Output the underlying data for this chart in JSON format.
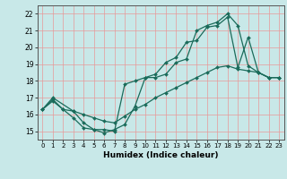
{
  "title": "",
  "xlabel": "Humidex (Indice chaleur)",
  "bg_color": "#c8e8e8",
  "grid_color": "#e89898",
  "line_color": "#1a6b5a",
  "xlim": [
    -0.5,
    23.5
  ],
  "ylim": [
    14.5,
    22.5
  ],
  "xticks": [
    0,
    1,
    2,
    3,
    4,
    5,
    6,
    7,
    8,
    9,
    10,
    11,
    12,
    13,
    14,
    15,
    16,
    17,
    18,
    19,
    20,
    21,
    22,
    23
  ],
  "yticks": [
    15,
    16,
    17,
    18,
    19,
    20,
    21,
    22
  ],
  "line1_x": [
    0,
    1,
    2,
    3,
    4,
    5,
    6,
    7,
    8,
    9,
    10,
    11,
    12,
    13,
    14,
    15,
    16,
    17,
    18,
    19,
    20,
    21,
    22,
    23
  ],
  "line1_y": [
    16.3,
    16.9,
    16.3,
    15.8,
    15.2,
    15.1,
    14.9,
    15.1,
    15.4,
    16.5,
    18.2,
    18.4,
    19.1,
    19.4,
    20.3,
    20.4,
    21.2,
    21.3,
    21.8,
    18.8,
    20.6,
    18.5,
    18.2,
    18.2
  ],
  "line2_x": [
    0,
    1,
    2,
    3,
    4,
    5,
    6,
    7,
    8,
    9,
    10,
    11,
    12,
    13,
    14,
    15,
    16,
    17,
    18,
    19,
    20,
    21,
    22,
    23
  ],
  "line2_y": [
    16.3,
    16.8,
    16.3,
    16.2,
    16.0,
    15.8,
    15.6,
    15.5,
    15.9,
    16.3,
    16.6,
    17.0,
    17.3,
    17.6,
    17.9,
    18.2,
    18.5,
    18.8,
    18.9,
    18.7,
    18.6,
    18.5,
    18.2,
    18.2
  ],
  "line3_x": [
    0,
    1,
    3,
    4,
    5,
    6,
    7,
    8,
    9,
    10,
    11,
    12,
    13,
    14,
    15,
    16,
    17,
    18,
    19,
    20,
    21,
    22,
    23
  ],
  "line3_y": [
    16.3,
    17.0,
    16.2,
    15.5,
    15.1,
    15.1,
    15.0,
    17.8,
    18.0,
    18.2,
    18.2,
    18.4,
    19.1,
    19.3,
    21.0,
    21.3,
    21.5,
    22.0,
    21.3,
    18.9,
    18.5,
    18.2,
    18.2
  ]
}
